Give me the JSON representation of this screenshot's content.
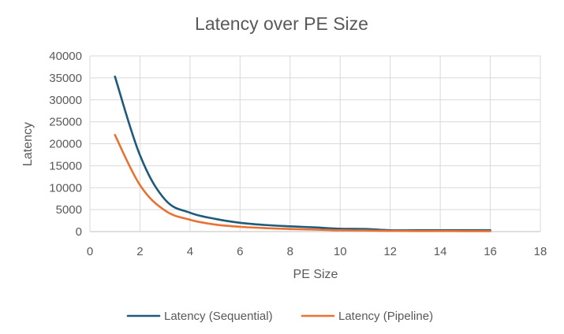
{
  "chart_data": {
    "type": "line",
    "title": "Latency over PE Size",
    "xlabel": "PE Size",
    "ylabel": "Latency",
    "xlim": [
      0,
      18
    ],
    "ylim": [
      0,
      40000
    ],
    "x_ticks": [
      0,
      2,
      4,
      6,
      8,
      10,
      12,
      14,
      16,
      18
    ],
    "y_ticks": [
      0,
      5000,
      10000,
      15000,
      20000,
      25000,
      30000,
      35000,
      40000
    ],
    "x": [
      1,
      2,
      3,
      4,
      5,
      6,
      7,
      8,
      9,
      10,
      11,
      12,
      13,
      14,
      15,
      16
    ],
    "series": [
      {
        "name": "Latency (Sequential)",
        "color": "#1f5a7a",
        "values": [
          35300,
          17400,
          7300,
          4300,
          2900,
          2000,
          1500,
          1200,
          950,
          650,
          600,
          300,
          300,
          300,
          300,
          300
        ]
      },
      {
        "name": "Latency (Pipeline)",
        "color": "#e97132",
        "values": [
          22000,
          10600,
          4800,
          2700,
          1600,
          1100,
          800,
          600,
          450,
          300,
          250,
          150,
          130,
          120,
          110,
          100
        ]
      }
    ],
    "grid": true,
    "legend": "bottom"
  }
}
